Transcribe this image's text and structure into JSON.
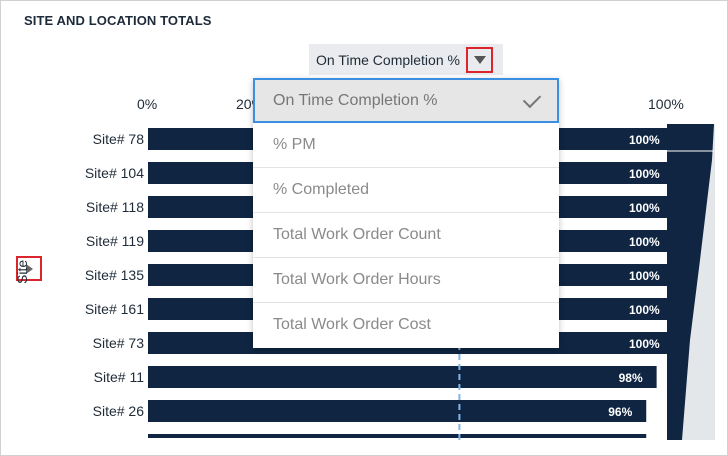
{
  "panel": {
    "title": "SITE AND LOCATION TOTALS"
  },
  "measure": {
    "selected": "On Time Completion %"
  },
  "menu": {
    "items": [
      {
        "label": "On Time Completion %",
        "selected": true
      },
      {
        "label": "% PM",
        "selected": false
      },
      {
        "label": "% Completed",
        "selected": false
      },
      {
        "label": "Total Work Order Count",
        "selected": false
      },
      {
        "label": "Total Work Order Hours",
        "selected": false
      },
      {
        "label": "Total Work Order Cost",
        "selected": false
      }
    ]
  },
  "colors": {
    "bar": "#0f2542",
    "highlight": "#d9252b",
    "selection": "#3b8fe0",
    "reference": "#7fb8e8"
  },
  "chart_data": {
    "type": "bar",
    "orientation": "horizontal",
    "ylabel": "Site",
    "x_ticks": [
      "0%",
      "20%",
      "",
      "",
      "",
      "100%"
    ],
    "xlim": [
      0,
      100
    ],
    "categories": [
      "Site# 78",
      "Site# 104",
      "Site# 118",
      "Site# 119",
      "Site# 135",
      "Site# 161",
      "Site# 73",
      "Site# 11",
      "Site# 26"
    ],
    "values": [
      100,
      100,
      100,
      100,
      100,
      100,
      100,
      98,
      96
    ],
    "value_labels": [
      "100%",
      "100%",
      "100%",
      "100%",
      "100%",
      "100%",
      "100%",
      "98%",
      "96%"
    ],
    "reference_line": 60
  }
}
